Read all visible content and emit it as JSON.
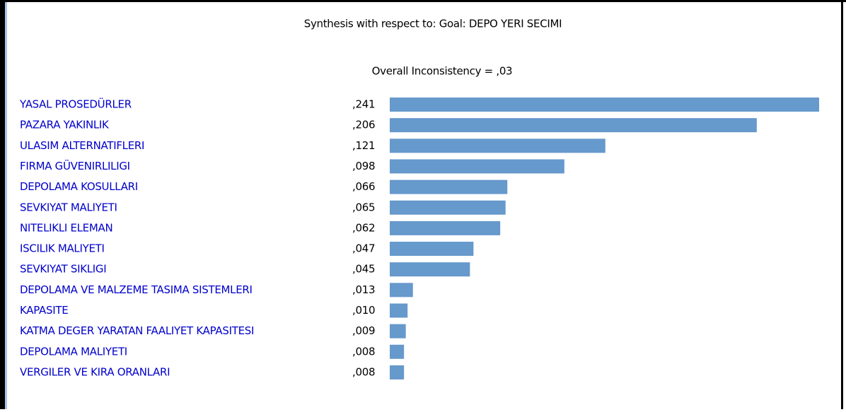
{
  "chart_data": {
    "type": "bar",
    "orientation": "horizontal",
    "title": "Synthesis with respect to: Goal: DEPO YERI SECIMI",
    "subtitle": "Overall Inconsistency = ,03",
    "categories": [
      "YASAL PROSEDÜRLER",
      "PAZARA YAKINLIK",
      "ULASIM ALTERNATIFLERI",
      "FIRMA GÜVENIRLILIGI",
      "DEPOLAMA KOSULLARI",
      "SEVKIYAT MALIYETI",
      "NITELIKLI ELEMAN",
      "ISCILIK MALIYETI",
      "SEVKIYAT SIKLIGI",
      "DEPOLAMA VE MALZEME TASIMA SISTEMLERI",
      "KAPASITE",
      "KATMA DEGER YARATAN FAALIYET KAPASITESI",
      "DEPOLAMA MALIYETI",
      "VERGILER VE KIRA ORANLARI"
    ],
    "values": [
      0.241,
      0.206,
      0.121,
      0.098,
      0.066,
      0.065,
      0.062,
      0.047,
      0.045,
      0.013,
      0.01,
      0.009,
      0.008,
      0.008
    ],
    "value_labels": [
      ",241",
      ",206",
      ",121",
      ",098",
      ",066",
      ",065",
      ",062",
      ",047",
      ",045",
      ",013",
      ",010",
      ",009",
      ",008",
      ",008"
    ],
    "color": "#6699cc",
    "label_color": "#0000cc"
  }
}
